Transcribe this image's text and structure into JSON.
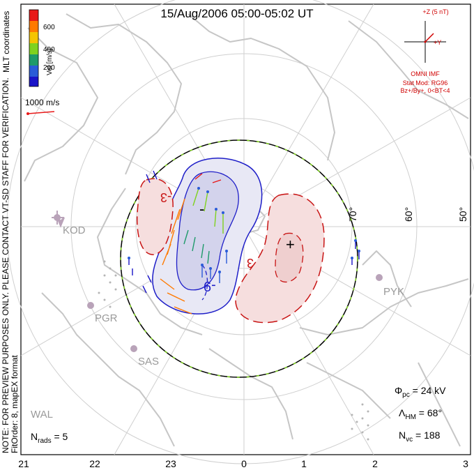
{
  "title": "15/Aug/2006 05:00-05:02 UT",
  "side_note": {
    "line1": "NOTE: FOR PREVIEW PURPOSES ONLY. PLEASE CONTACT VT-SD STAFF FOR VERIFICATION.",
    "line2": "FitOrder: 8, mapEX format"
  },
  "coordinates_label": "MLT coordinates",
  "colorbar": {
    "label": "Vel [m/s]",
    "ticks": [
      "600",
      "400",
      "200"
    ],
    "colors": [
      "#e81818",
      "#ff7a00",
      "#f5c400",
      "#7fd21f",
      "#1e9a6a",
      "#2a5bd8",
      "#1a14c8"
    ]
  },
  "velocity_scale": "1000 m/s",
  "imf": {
    "bz_label": "+Z (5 nT)",
    "by_label": "+Y",
    "source": "OMNI IMF",
    "stat_mod": "Stat Mod: RG96",
    "condition": "Bz+/By+, 0<BT<4"
  },
  "mlt_labels": [
    "21",
    "22",
    "23",
    "0",
    "1",
    "2",
    "3"
  ],
  "lat_labels": [
    "70°",
    "60°",
    "50°"
  ],
  "radars": [
    "KOD",
    "PGR",
    "SAS",
    "WAL",
    "PYK"
  ],
  "contours": {
    "minus_label": "-",
    "plus_label": "+",
    "m9": "-9",
    "m3": "-3",
    "p3": "3"
  },
  "params": {
    "phi_pc_value": "24 kV",
    "lambda_hm_value": "68°",
    "n_vc_value": "188",
    "n_rads_value": "5"
  }
}
